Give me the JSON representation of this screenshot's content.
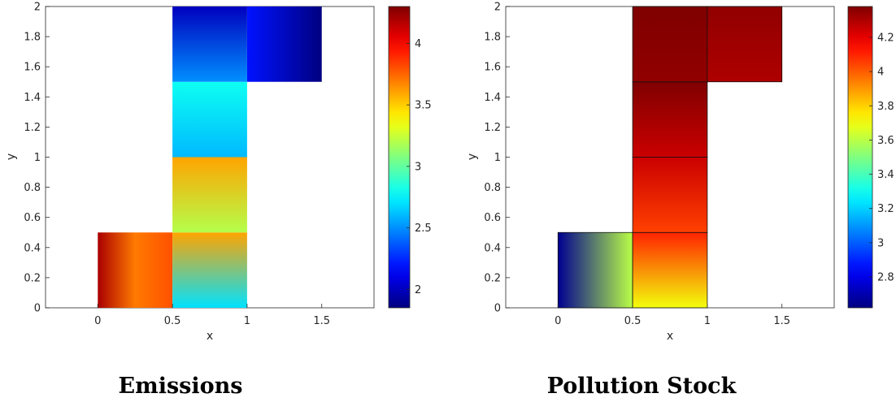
{
  "chart_data": [
    {
      "type": "heatmap",
      "title": "Emissions",
      "xlabel": "x",
      "ylabel": "y",
      "xlim": [
        -0.35,
        1.85
      ],
      "ylim": [
        0,
        2
      ],
      "xticks": [
        0,
        0.5,
        1,
        1.5
      ],
      "xtick_labels": [
        "0",
        "0.5",
        "1",
        "1.5"
      ],
      "yticks": [
        0,
        0.2,
        0.4,
        0.6,
        0.8,
        1,
        1.2,
        1.4,
        1.6,
        1.8,
        2
      ],
      "ytick_labels": [
        "0",
        "0.2",
        "0.4",
        "0.6",
        "0.8",
        "1",
        "1.2",
        "1.4",
        "1.6",
        "1.8",
        "2"
      ],
      "colormap": "jet",
      "colorbar": {
        "range": [
          1.85,
          4.3
        ],
        "ticks": [
          2,
          2.5,
          3,
          3.5,
          4
        ],
        "tick_labels": [
          "2",
          "2.5",
          "3",
          "3.5",
          "4"
        ]
      },
      "regions": [
        {
          "x": [
            0,
            0.5
          ],
          "y": [
            0,
            0.5
          ],
          "value_range": [
            3.7,
            4.2
          ]
        },
        {
          "x": [
            0.5,
            1
          ],
          "y": [
            0,
            0.5
          ],
          "value_range": [
            2.7,
            3.6
          ]
        },
        {
          "x": [
            0.5,
            1
          ],
          "y": [
            0.5,
            1
          ],
          "value_range": [
            3.2,
            3.6
          ]
        },
        {
          "x": [
            0.5,
            1
          ],
          "y": [
            1,
            1.5
          ],
          "value_range": [
            2.6,
            2.8
          ]
        },
        {
          "x": [
            0.5,
            1
          ],
          "y": [
            1.5,
            2
          ],
          "value_range": [
            2.0,
            2.5
          ]
        },
        {
          "x": [
            1,
            1.5
          ],
          "y": [
            1.5,
            2
          ],
          "value_range": [
            1.85,
            2.2
          ]
        }
      ]
    },
    {
      "type": "heatmap",
      "title": "Pollution Stock",
      "xlabel": "x",
      "ylabel": "y",
      "xlim": [
        -0.35,
        1.85
      ],
      "ylim": [
        0,
        2
      ],
      "xticks": [
        0,
        0.5,
        1,
        1.5
      ],
      "xtick_labels": [
        "0",
        "0.5",
        "1",
        "1.5"
      ],
      "yticks": [
        0,
        0.2,
        0.4,
        0.6,
        0.8,
        1,
        1.2,
        1.4,
        1.6,
        1.8,
        2
      ],
      "ytick_labels": [
        "0",
        "0.2",
        "0.4",
        "0.6",
        "0.8",
        "1",
        "1.2",
        "1.4",
        "1.6",
        "1.8",
        "2"
      ],
      "colormap": "jet",
      "colorbar": {
        "range": [
          2.62,
          4.38
        ],
        "ticks": [
          2.8,
          3,
          3.2,
          3.4,
          3.6,
          3.8,
          4,
          4.2
        ],
        "tick_labels": [
          "2.8",
          "3",
          "3.2",
          "3.4",
          "3.6",
          "3.8",
          "4",
          "4.2"
        ]
      },
      "regions": [
        {
          "x": [
            0,
            0.5
          ],
          "y": [
            0,
            0.5
          ],
          "value_range": [
            2.65,
            3.6
          ]
        },
        {
          "x": [
            0.5,
            1
          ],
          "y": [
            0,
            0.5
          ],
          "value_range": [
            3.7,
            4.1
          ]
        },
        {
          "x": [
            0.5,
            1
          ],
          "y": [
            0.5,
            1
          ],
          "value_range": [
            4.05,
            4.25
          ]
        },
        {
          "x": [
            0.5,
            1
          ],
          "y": [
            1,
            1.5
          ],
          "value_range": [
            4.25,
            4.38
          ]
        },
        {
          "x": [
            0.5,
            1
          ],
          "y": [
            1.5,
            2
          ],
          "value_range": [
            4.35,
            4.38
          ]
        },
        {
          "x": [
            1,
            1.5
          ],
          "y": [
            1.5,
            2
          ],
          "value_range": [
            4.3,
            4.35
          ]
        }
      ]
    }
  ]
}
